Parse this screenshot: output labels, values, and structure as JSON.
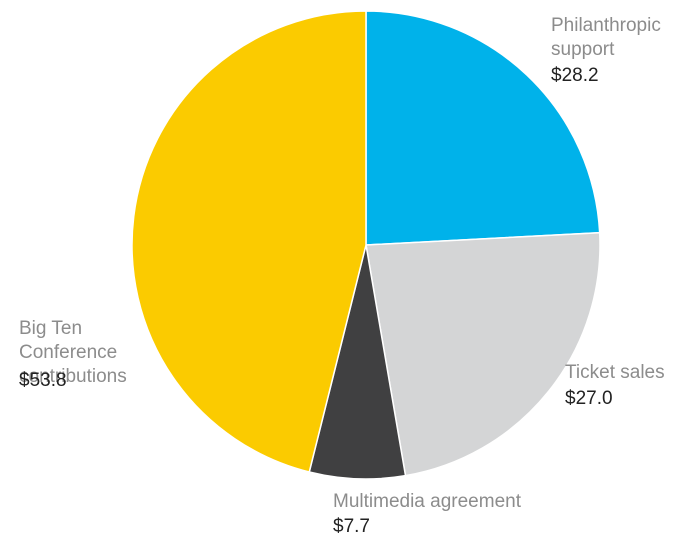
{
  "chart_data": {
    "type": "pie",
    "title": "",
    "start_angle_deg": 0,
    "direction": "clockwise",
    "slices": [
      {
        "label": "Philanthropic\nsupport",
        "value": 28.2,
        "value_text": "$28.2",
        "color": "#00b2ea"
      },
      {
        "label": "Ticket sales",
        "value": 27.0,
        "value_text": "$27.0",
        "color": "#d4d5d6"
      },
      {
        "label": "Multimedia agreement",
        "value": 7.7,
        "value_text": "$7.7",
        "color": "#404041"
      },
      {
        "label": "Big Ten\nConference\ncontributions",
        "value": 53.8,
        "value_text": "$53.8",
        "color": "#fbcb00"
      }
    ],
    "label_color": "#8c8c8c",
    "value_color": "#222222"
  }
}
